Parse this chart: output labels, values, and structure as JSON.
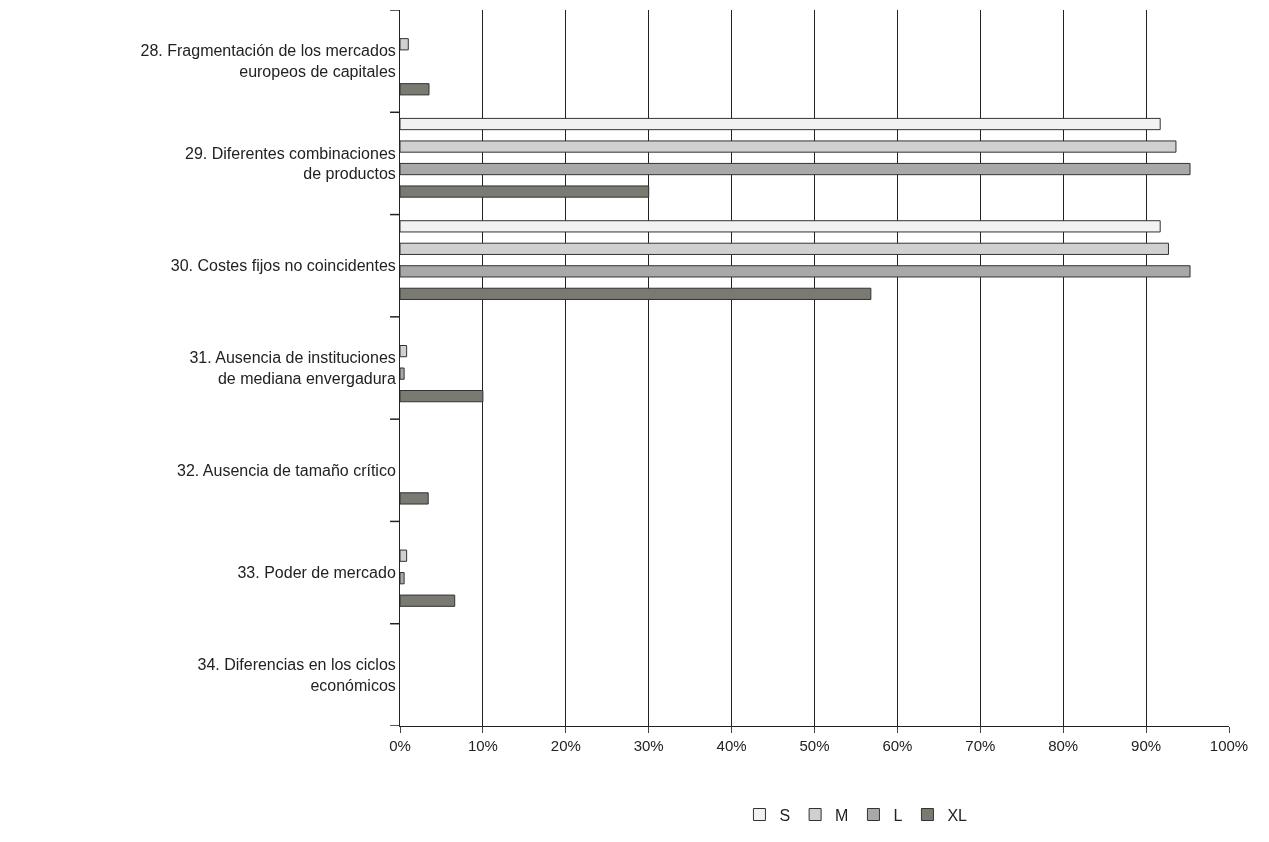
{
  "chart_data": {
    "type": "bar",
    "orientation": "horizontal",
    "categories": [
      "28. Fragmentación de los mercados\neuropeos de capitales",
      "29. Diferentes combinaciones\nde productos",
      "30. Costes fijos no coincidentes",
      "31. Ausencia de instituciones\nde mediana envergadura",
      "32. Ausencia de tamaño crítico",
      "33. Poder de mercado",
      "34. Diferencias en los ciclos\neconómicos"
    ],
    "series": [
      {
        "name": "S",
        "color": "#f2f2f2",
        "values": [
          0,
          91.7,
          91.7,
          0,
          0,
          0,
          0
        ]
      },
      {
        "name": "M",
        "color": "#d0d0d0",
        "values": [
          1,
          93.6,
          92.7,
          0.8,
          0,
          0.8,
          0
        ]
      },
      {
        "name": "L",
        "color": "#a8a8a8",
        "values": [
          0,
          95.3,
          95.3,
          0.5,
          0,
          0.5,
          0
        ]
      },
      {
        "name": "XL",
        "color": "#7a7a72",
        "values": [
          3.5,
          30,
          56.8,
          10,
          3.4,
          6.6,
          0
        ]
      }
    ],
    "xlim": [
      0,
      100
    ],
    "xticks": [
      {
        "value": 0,
        "label": "0%"
      },
      {
        "value": 10,
        "label": "10%"
      },
      {
        "value": 20,
        "label": "20%"
      },
      {
        "value": 30,
        "label": "30%"
      },
      {
        "value": 40,
        "label": "40%"
      },
      {
        "value": 50,
        "label": "50%"
      },
      {
        "value": 60,
        "label": "60%"
      },
      {
        "value": 70,
        "label": "70%"
      },
      {
        "value": 80,
        "label": "80%"
      },
      {
        "value": 90,
        "label": "90%"
      },
      {
        "value": 100,
        "label": "100%"
      }
    ],
    "grid": "x",
    "legend": "bottom"
  }
}
